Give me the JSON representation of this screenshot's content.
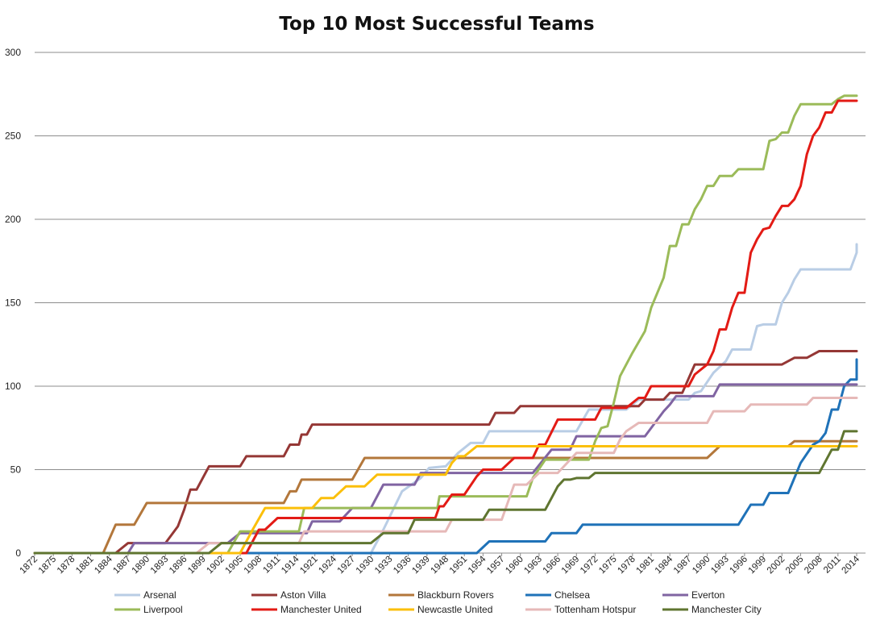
{
  "chart_data": {
    "type": "line",
    "title": "Top 10 Most Successful Teams",
    "xlabel": "",
    "ylabel": "",
    "ylim": [
      0,
      300
    ],
    "yticks": [
      0,
      50,
      100,
      150,
      200,
      250,
      300
    ],
    "xlim": [
      1872,
      2016
    ],
    "xticks": [
      1872,
      1875,
      1878,
      1881,
      1884,
      1887,
      1890,
      1893,
      1896,
      1899,
      1902,
      1905,
      1908,
      1911,
      1914,
      1921,
      1924,
      1927,
      1930,
      1933,
      1936,
      1939,
      1948,
      1951,
      1954,
      1957,
      1960,
      1963,
      1966,
      1969,
      1972,
      1975,
      1978,
      1981,
      1984,
      1987,
      1990,
      1993,
      1996,
      1999,
      2002,
      2005,
      2008,
      2011,
      2014
    ],
    "grid": "horizontal",
    "legend_position": "bottom",
    "series": [
      {
        "name": "Arsenal",
        "color": "#b9cde5",
        "points": [
          [
            1872,
            0
          ],
          [
            1930,
            0
          ],
          [
            1932,
            14
          ],
          [
            1935,
            37
          ],
          [
            1938,
            45
          ],
          [
            1940,
            51
          ],
          [
            1948,
            52
          ],
          [
            1950,
            60
          ],
          [
            1952,
            66
          ],
          [
            1954,
            66
          ],
          [
            1955,
            73
          ],
          [
            1969,
            73
          ],
          [
            1971,
            86
          ],
          [
            1977,
            86
          ],
          [
            1979,
            92
          ],
          [
            1987,
            92
          ],
          [
            1988,
            96
          ],
          [
            1989,
            97
          ],
          [
            1991,
            108
          ],
          [
            1993,
            115
          ],
          [
            1994,
            122
          ],
          [
            1997,
            122
          ],
          [
            1998,
            136
          ],
          [
            1999,
            137
          ],
          [
            2001,
            137
          ],
          [
            2002,
            150
          ],
          [
            2003,
            156
          ],
          [
            2004,
            164
          ],
          [
            2005,
            170
          ],
          [
            2013,
            170
          ],
          [
            2015,
            180
          ],
          [
            2016,
            185
          ]
        ]
      },
      {
        "name": "Aston Villa",
        "color": "#953735",
        "points": [
          [
            1872,
            0
          ],
          [
            1885,
            0
          ],
          [
            1887,
            6
          ],
          [
            1893,
            6
          ],
          [
            1895,
            16
          ],
          [
            1896,
            26
          ],
          [
            1897,
            38
          ],
          [
            1898,
            38
          ],
          [
            1900,
            52
          ],
          [
            1905,
            52
          ],
          [
            1906,
            58
          ],
          [
            1912,
            58
          ],
          [
            1913,
            65
          ],
          [
            1915,
            65
          ],
          [
            1916,
            71
          ],
          [
            1918,
            71
          ],
          [
            1920,
            77
          ],
          [
            1955,
            77
          ],
          [
            1956,
            84
          ],
          [
            1959,
            84
          ],
          [
            1960,
            88
          ],
          [
            1979,
            88
          ],
          [
            1980,
            92
          ],
          [
            1983,
            92
          ],
          [
            1984,
            96
          ],
          [
            1986,
            96
          ],
          [
            1988,
            113
          ],
          [
            2002,
            113
          ],
          [
            2004,
            117
          ],
          [
            2006,
            117
          ],
          [
            2008,
            121
          ],
          [
            2016,
            121
          ]
        ]
      },
      {
        "name": "Blackburn Rovers",
        "color": "#b3773b",
        "points": [
          [
            1872,
            0
          ],
          [
            1883,
            0
          ],
          [
            1885,
            17
          ],
          [
            1888,
            17
          ],
          [
            1890,
            30
          ],
          [
            1912,
            30
          ],
          [
            1913,
            37
          ],
          [
            1914,
            37
          ],
          [
            1916,
            44
          ],
          [
            1927,
            44
          ],
          [
            1929,
            57
          ],
          [
            1990,
            57
          ],
          [
            1992,
            64
          ],
          [
            2003,
            64
          ],
          [
            2004,
            67
          ],
          [
            2016,
            67
          ]
        ]
      },
      {
        "name": "Chelsea",
        "color": "#1f72b8",
        "points": [
          [
            1872,
            0
          ],
          [
            1953,
            0
          ],
          [
            1955,
            7
          ],
          [
            1964,
            7
          ],
          [
            1965,
            12
          ],
          [
            1969,
            12
          ],
          [
            1970,
            17
          ],
          [
            1995,
            17
          ],
          [
            1997,
            29
          ],
          [
            1999,
            29
          ],
          [
            2000,
            36
          ],
          [
            2003,
            36
          ],
          [
            2005,
            54
          ],
          [
            2007,
            65
          ],
          [
            2008,
            67
          ],
          [
            2009,
            72
          ],
          [
            2010,
            86
          ],
          [
            2011,
            86
          ],
          [
            2012,
            100
          ],
          [
            2013,
            104
          ],
          [
            2014,
            104
          ],
          [
            2016,
            116
          ]
        ]
      },
      {
        "name": "Everton",
        "color": "#8064a2",
        "points": [
          [
            1872,
            0
          ],
          [
            1887,
            0
          ],
          [
            1888,
            6
          ],
          [
            1903,
            6
          ],
          [
            1905,
            12
          ],
          [
            1918,
            12
          ],
          [
            1920,
            19
          ],
          [
            1925,
            19
          ],
          [
            1927,
            27
          ],
          [
            1930,
            27
          ],
          [
            1932,
            41
          ],
          [
            1937,
            41
          ],
          [
            1938,
            48
          ],
          [
            1962,
            48
          ],
          [
            1965,
            62
          ],
          [
            1968,
            62
          ],
          [
            1969,
            70
          ],
          [
            1980,
            70
          ],
          [
            1983,
            85
          ],
          [
            1984,
            89
          ],
          [
            1985,
            94
          ],
          [
            1991,
            94
          ],
          [
            1992,
            101
          ],
          [
            2016,
            101
          ]
        ]
      },
      {
        "name": "Liverpool",
        "color": "#9bbb59",
        "points": [
          [
            1872,
            0
          ],
          [
            1903,
            0
          ],
          [
            1905,
            13
          ],
          [
            1915,
            13
          ],
          [
            1917,
            27
          ],
          [
            1944,
            27
          ],
          [
            1945,
            34
          ],
          [
            1961,
            34
          ],
          [
            1962,
            45
          ],
          [
            1964,
            56
          ],
          [
            1971,
            56
          ],
          [
            1972,
            67
          ],
          [
            1973,
            75
          ],
          [
            1974,
            76
          ],
          [
            1975,
            90
          ],
          [
            1976,
            106
          ],
          [
            1978,
            120
          ],
          [
            1980,
            133
          ],
          [
            1981,
            147
          ],
          [
            1983,
            165
          ],
          [
            1984,
            184
          ],
          [
            1985,
            184
          ],
          [
            1986,
            197
          ],
          [
            1987,
            197
          ],
          [
            1988,
            206
          ],
          [
            1989,
            212
          ],
          [
            1990,
            220
          ],
          [
            1991,
            220
          ],
          [
            1992,
            226
          ],
          [
            1994,
            226
          ],
          [
            1995,
            230
          ],
          [
            1999,
            230
          ],
          [
            2000,
            247
          ],
          [
            2001,
            248
          ],
          [
            2002,
            252
          ],
          [
            2003,
            252
          ],
          [
            2004,
            262
          ],
          [
            2005,
            269
          ],
          [
            2010,
            269
          ],
          [
            2011,
            272
          ],
          [
            2012,
            274
          ],
          [
            2016,
            274
          ]
        ]
      },
      {
        "name": "Manchester United",
        "color": "#e31b15",
        "points": [
          [
            1872,
            0
          ],
          [
            1906,
            0
          ],
          [
            1907,
            7
          ],
          [
            1908,
            14
          ],
          [
            1909,
            14
          ],
          [
            1911,
            21
          ],
          [
            1943,
            21
          ],
          [
            1945,
            28
          ],
          [
            1947,
            28
          ],
          [
            1949,
            35
          ],
          [
            1951,
            35
          ],
          [
            1953,
            46
          ],
          [
            1954,
            50
          ],
          [
            1957,
            50
          ],
          [
            1959,
            57
          ],
          [
            1962,
            57
          ],
          [
            1963,
            65
          ],
          [
            1964,
            65
          ],
          [
            1966,
            80
          ],
          [
            1972,
            80
          ],
          [
            1973,
            87
          ],
          [
            1977,
            87
          ],
          [
            1979,
            93
          ],
          [
            1980,
            93
          ],
          [
            1981,
            100
          ],
          [
            1987,
            100
          ],
          [
            1988,
            107
          ],
          [
            1990,
            113
          ],
          [
            1991,
            121
          ],
          [
            1992,
            134
          ],
          [
            1993,
            134
          ],
          [
            1994,
            147
          ],
          [
            1995,
            156
          ],
          [
            1996,
            156
          ],
          [
            1997,
            180
          ],
          [
            1998,
            188
          ],
          [
            1999,
            194
          ],
          [
            2000,
            195
          ],
          [
            2001,
            202
          ],
          [
            2002,
            208
          ],
          [
            2003,
            208
          ],
          [
            2004,
            212
          ],
          [
            2005,
            220
          ],
          [
            2006,
            239
          ],
          [
            2007,
            250
          ],
          [
            2008,
            255
          ],
          [
            2009,
            264
          ],
          [
            2010,
            264
          ],
          [
            2011,
            271
          ],
          [
            2016,
            271
          ]
        ]
      },
      {
        "name": "Newcastle United",
        "color": "#fbbf0a",
        "points": [
          [
            1872,
            0
          ],
          [
            1905,
            0
          ],
          [
            1906,
            7
          ],
          [
            1907,
            14
          ],
          [
            1909,
            27
          ],
          [
            1919,
            27
          ],
          [
            1920,
            27
          ],
          [
            1922,
            33
          ],
          [
            1924,
            33
          ],
          [
            1926,
            40
          ],
          [
            1929,
            40
          ],
          [
            1931,
            47
          ],
          [
            1948,
            47
          ],
          [
            1949,
            54
          ],
          [
            1950,
            58
          ],
          [
            1951,
            58
          ],
          [
            1953,
            64
          ],
          [
            2016,
            64
          ]
        ]
      },
      {
        "name": "Tottenham Hotspur",
        "color": "#e6b9b8",
        "points": [
          [
            1872,
            0
          ],
          [
            1898,
            0
          ],
          [
            1900,
            6
          ],
          [
            1915,
            6
          ],
          [
            1917,
            13
          ],
          [
            1948,
            13
          ],
          [
            1949,
            20
          ],
          [
            1953,
            20
          ],
          [
            1955,
            20
          ],
          [
            1957,
            20
          ],
          [
            1959,
            41
          ],
          [
            1961,
            41
          ],
          [
            1963,
            48
          ],
          [
            1966,
            48
          ],
          [
            1968,
            56
          ],
          [
            1969,
            60
          ],
          [
            1975,
            60
          ],
          [
            1976,
            68
          ],
          [
            1977,
            73
          ],
          [
            1979,
            78
          ],
          [
            1990,
            78
          ],
          [
            1991,
            85
          ],
          [
            1996,
            85
          ],
          [
            1997,
            89
          ],
          [
            2006,
            89
          ],
          [
            2007,
            93
          ],
          [
            2016,
            93
          ]
        ]
      },
      {
        "name": "Manchester City",
        "color": "#5f7530",
        "points": [
          [
            1872,
            0
          ],
          [
            1900,
            0
          ],
          [
            1902,
            6
          ],
          [
            1930,
            6
          ],
          [
            1932,
            12
          ],
          [
            1936,
            12
          ],
          [
            1937,
            20
          ],
          [
            1954,
            20
          ],
          [
            1955,
            26
          ],
          [
            1964,
            26
          ],
          [
            1965,
            33
          ],
          [
            1966,
            40
          ],
          [
            1967,
            44
          ],
          [
            1968,
            44
          ],
          [
            1969,
            45
          ],
          [
            1971,
            45
          ],
          [
            1972,
            48
          ],
          [
            2008,
            48
          ],
          [
            2009,
            55
          ],
          [
            2010,
            62
          ],
          [
            2011,
            62
          ],
          [
            2012,
            73
          ],
          [
            2016,
            73
          ]
        ]
      }
    ]
  }
}
